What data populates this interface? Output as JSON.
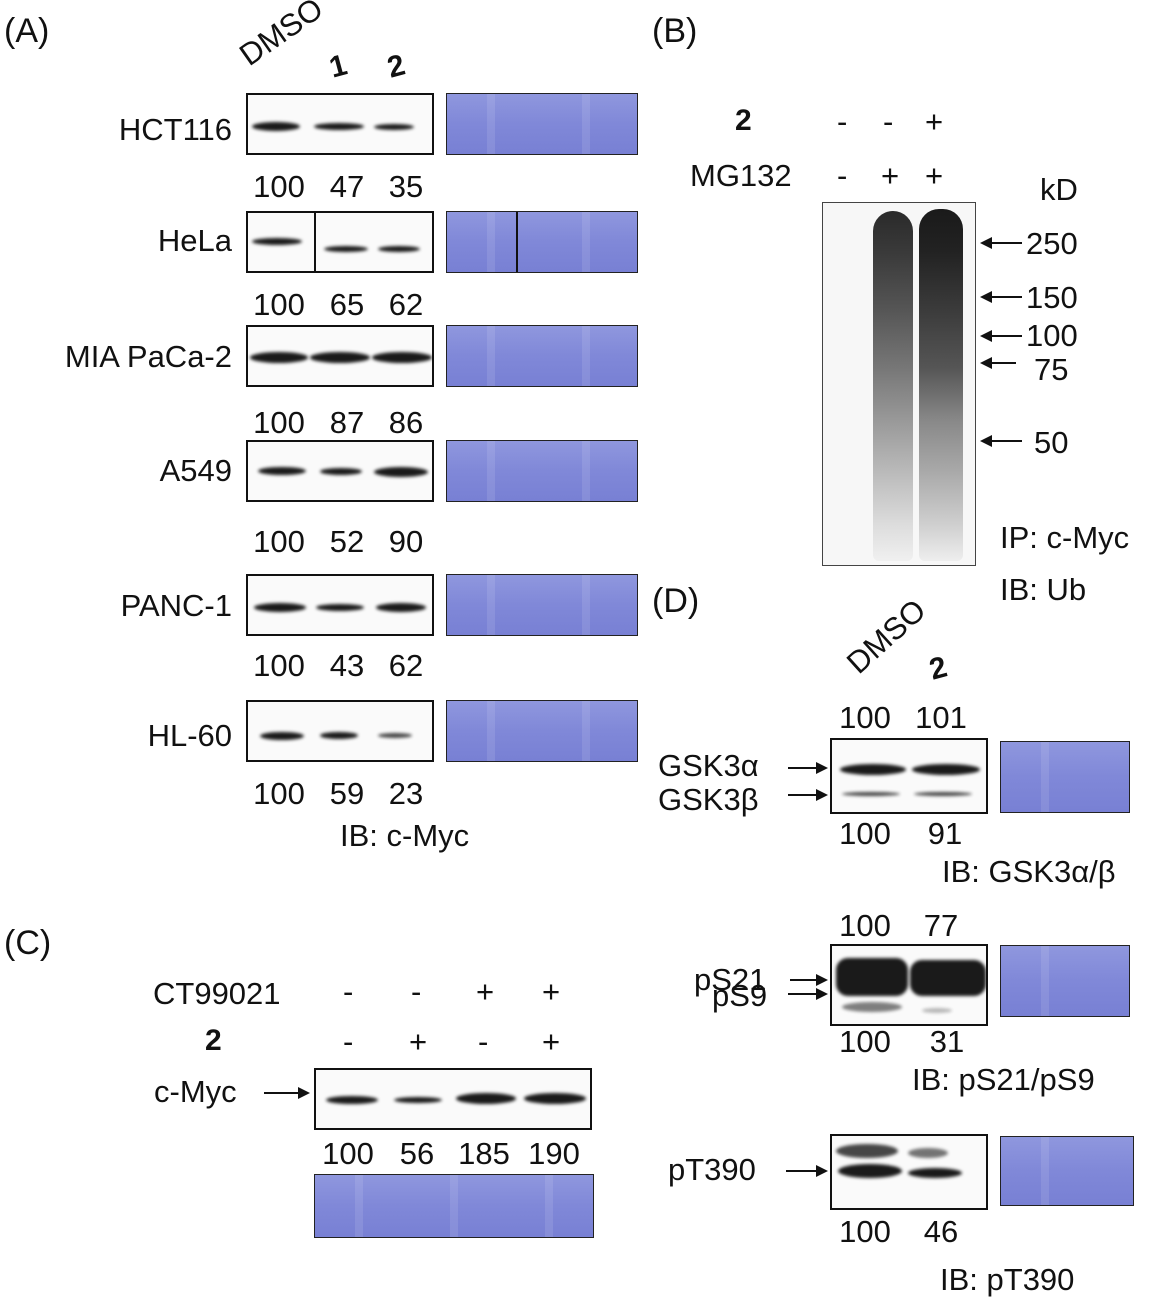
{
  "panel_a": {
    "label": "(A)",
    "lane_headers": [
      "DMSO",
      "1",
      "2"
    ],
    "rows": [
      {
        "cell": "HCT116",
        "quant": [
          "100",
          "47",
          "35"
        ]
      },
      {
        "cell": "HeLa",
        "quant": [
          "100",
          "65",
          "62"
        ]
      },
      {
        "cell": "MIA PaCa-2",
        "quant": [
          "100",
          "87",
          "86"
        ]
      },
      {
        "cell": "A549",
        "quant": [
          "100",
          "52",
          "90"
        ]
      },
      {
        "cell": "PANC-1",
        "quant": [
          "100",
          "43",
          "62"
        ]
      },
      {
        "cell": "HL-60",
        "quant": [
          "100",
          "59",
          "23"
        ]
      }
    ],
    "ib": "IB: c-Myc"
  },
  "panel_b": {
    "label": "(B)",
    "row1_name": "2",
    "row1_signs": [
      "-",
      "-",
      "+"
    ],
    "row2_name": "MG132",
    "row2_signs": [
      "-",
      "+",
      "+"
    ],
    "unit": "kD",
    "markers": [
      "250",
      "150",
      "100",
      "75",
      "50"
    ],
    "ip": "IP: c-Myc",
    "ib": "IB: Ub"
  },
  "panel_c": {
    "label": "(C)",
    "row1_name": "CT99021",
    "row1_signs": [
      "-",
      "-",
      "+",
      "+"
    ],
    "row2_name": "2",
    "row2_signs": [
      "-",
      "+",
      "-",
      "+"
    ],
    "target": "c-Myc",
    "quant": [
      "100",
      "56",
      "185",
      "190"
    ]
  },
  "panel_d": {
    "label": "(D)",
    "lane_headers": [
      "DMSO",
      "2"
    ],
    "blots": [
      {
        "top_quant": [
          "100",
          "101"
        ],
        "labels": [
          "GSK3α",
          "GSK3β"
        ],
        "bottom_quant": [
          "100",
          "91"
        ],
        "ib": "IB: GSK3α/β"
      },
      {
        "top_quant": [
          "100",
          "77"
        ],
        "labels": [
          "pS21",
          "pS9"
        ],
        "bottom_quant": [
          "100",
          "31"
        ],
        "ib": "IB: pS21/pS9"
      },
      {
        "labels": [
          "pT390"
        ],
        "bottom_quant": [
          "100",
          "46"
        ],
        "ib": "IB: pT390"
      }
    ]
  }
}
